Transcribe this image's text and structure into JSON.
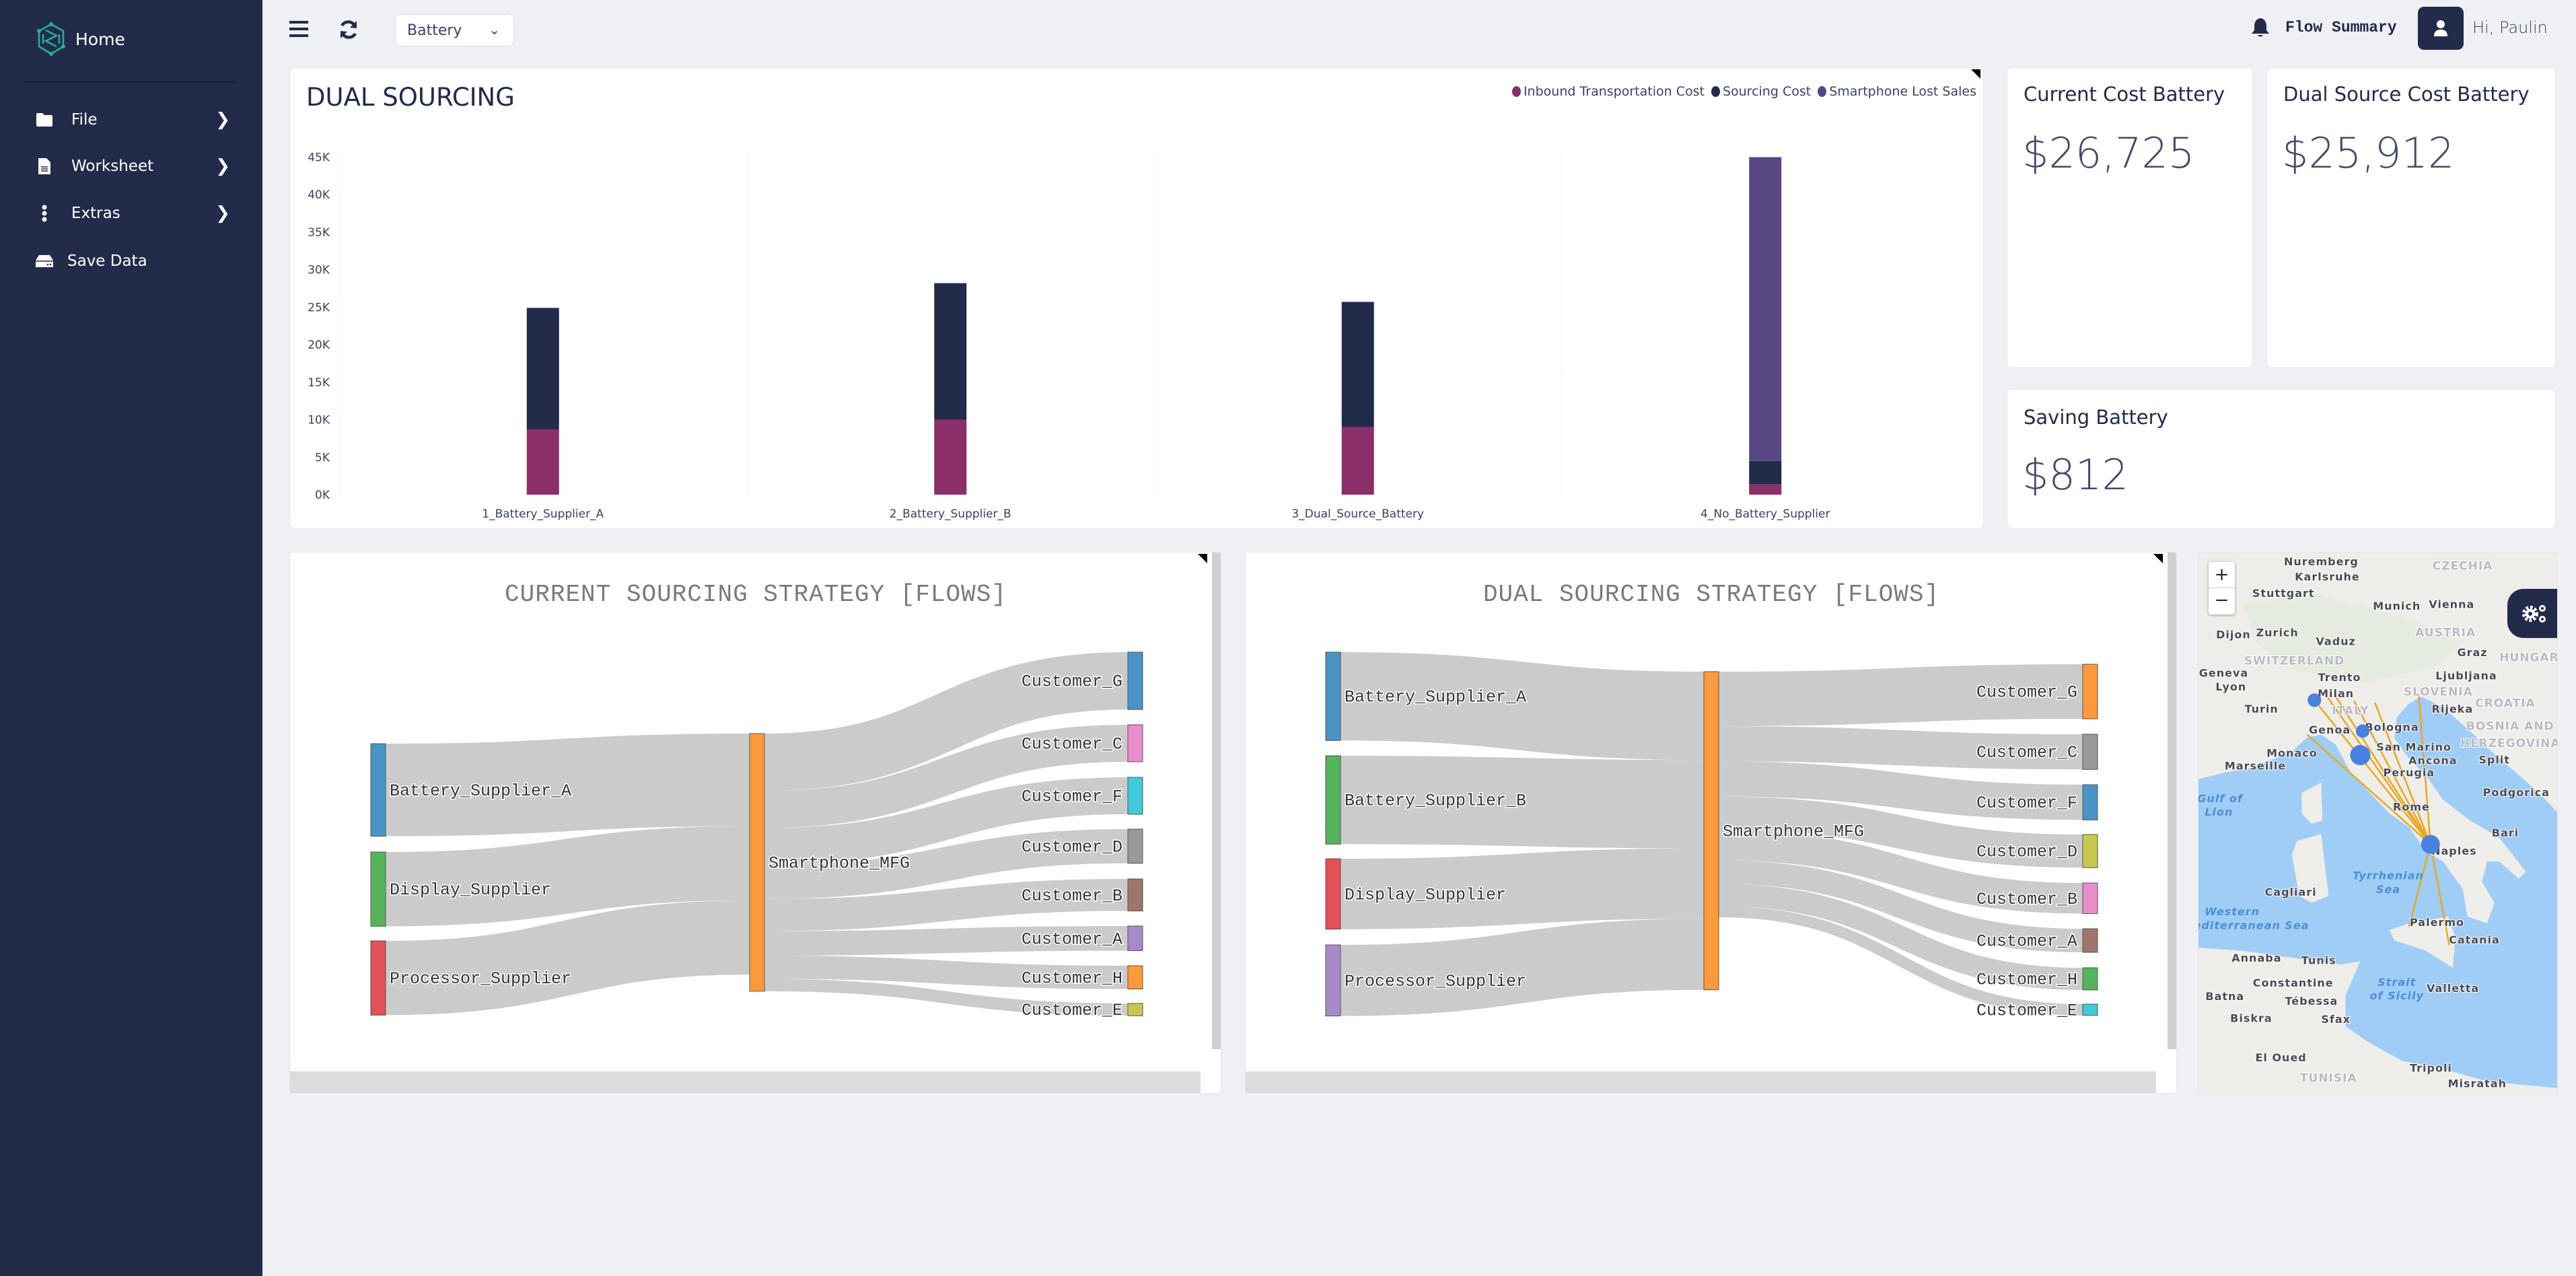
{
  "sidebar": {
    "home_label": "Home",
    "items": [
      {
        "label": "File",
        "icon": "folder-icon"
      },
      {
        "label": "Worksheet",
        "icon": "document-icon"
      },
      {
        "label": "Extras",
        "icon": "vertical-dots-icon"
      },
      {
        "label": "Save Data",
        "icon": "hard-drive-icon"
      }
    ]
  },
  "topbar": {
    "selector_value": "Battery",
    "flow_summary_label": "Flow Summary",
    "greeting": "Hi, Paulin"
  },
  "kpis": {
    "current_title": "Current Cost Battery",
    "current_value": "$26,725",
    "dual_title": "Dual Source Cost Battery",
    "dual_value": "$25,912",
    "saving_title": "Saving Battery",
    "saving_value": "$812"
  },
  "chart_data": {
    "type": "bar",
    "stacked": true,
    "title": "DUAL SOURCING",
    "categories": [
      "1_Battery_Supplier_A",
      "2_Battery_Supplier_B",
      "3_Dual_Source_Battery",
      "4_No_Battery_Supplier"
    ],
    "series": [
      {
        "name": "Inbound Transportation Cost",
        "color": "#8b2e69",
        "values": [
          8700,
          10000,
          9000,
          1400
        ]
      },
      {
        "name": "Sourcing Cost",
        "color": "#232b4b",
        "values": [
          16200,
          18200,
          16700,
          3100
        ]
      },
      {
        "name": "Smartphone Lost Sales",
        "color": "#574883",
        "values": [
          0,
          0,
          0,
          40500
        ]
      }
    ],
    "yticks": [
      "0K",
      "5K",
      "10K",
      "15K",
      "20K",
      "25K",
      "30K",
      "35K",
      "40K",
      "45K"
    ],
    "ylim": [
      0,
      45000
    ],
    "xlabel": "",
    "ylabel": "",
    "legend": "top-right",
    "grid": true
  },
  "sankeys": [
    {
      "title": "CURRENT SOURCING STRATEGY [FLOWS]",
      "nodes": [
        {
          "name": "Battery_Supplier_A",
          "color": "#4b93c5"
        },
        {
          "name": "Display_Supplier",
          "color": "#56b35a"
        },
        {
          "name": "Processor_Supplier",
          "color": "#e05255"
        },
        {
          "name": "Smartphone_MFG",
          "color": "#ff9a3c"
        },
        {
          "name": "Customer_G",
          "color": "#4b93c5"
        },
        {
          "name": "Customer_C",
          "color": "#e88fcb"
        },
        {
          "name": "Customer_F",
          "color": "#42c8d8"
        },
        {
          "name": "Customer_D",
          "color": "#999999"
        },
        {
          "name": "Customer_B",
          "color": "#a0766c"
        },
        {
          "name": "Customer_A",
          "color": "#a68ac9"
        },
        {
          "name": "Customer_H",
          "color": "#ff9a3c"
        },
        {
          "name": "Customer_E",
          "color": "#c8c850"
        }
      ],
      "links": [
        {
          "source": 0,
          "target": 3,
          "value": 263
        },
        {
          "source": 1,
          "target": 3,
          "value": 211
        },
        {
          "source": 2,
          "target": 3,
          "value": 211
        },
        {
          "source": 3,
          "target": 4,
          "value": 163
        },
        {
          "source": 3,
          "target": 5,
          "value": 105
        },
        {
          "source": 3,
          "target": 6,
          "value": 105
        },
        {
          "source": 3,
          "target": 7,
          "value": 97
        },
        {
          "source": 3,
          "target": 8,
          "value": 91
        },
        {
          "source": 3,
          "target": 9,
          "value": 70
        },
        {
          "source": 3,
          "target": 10,
          "value": 66
        },
        {
          "source": 3,
          "target": 11,
          "value": 35
        }
      ]
    },
    {
      "title": "DUAL SOURCING STRATEGY [FLOWS]",
      "nodes": [
        {
          "name": "Battery_Supplier_A",
          "color": "#4b93c5"
        },
        {
          "name": "Battery_Supplier_B",
          "color": "#56b35a"
        },
        {
          "name": "Display_Supplier",
          "color": "#e05255"
        },
        {
          "name": "Processor_Supplier",
          "color": "#a68ac9"
        },
        {
          "name": "Smartphone_MFG",
          "color": "#ff9a3c"
        },
        {
          "name": "Customer_G",
          "color": "#ff9a3c"
        },
        {
          "name": "Customer_C",
          "color": "#999999"
        },
        {
          "name": "Customer_F",
          "color": "#4b93c5"
        },
        {
          "name": "Customer_D",
          "color": "#c8c850"
        },
        {
          "name": "Customer_B",
          "color": "#e88fcb"
        },
        {
          "name": "Customer_A",
          "color": "#a0766c"
        },
        {
          "name": "Customer_H",
          "color": "#56b35a"
        },
        {
          "name": "Customer_E",
          "color": "#42c8d8"
        }
      ],
      "links": [
        {
          "source": 0,
          "target": 4,
          "value": 251
        },
        {
          "source": 1,
          "target": 4,
          "value": 251
        },
        {
          "source": 2,
          "target": 4,
          "value": 200
        },
        {
          "source": 3,
          "target": 4,
          "value": 202
        },
        {
          "source": 4,
          "target": 5,
          "value": 155
        },
        {
          "source": 4,
          "target": 6,
          "value": 100
        },
        {
          "source": 4,
          "target": 7,
          "value": 100
        },
        {
          "source": 4,
          "target": 8,
          "value": 94
        },
        {
          "source": 4,
          "target": 9,
          "value": 87
        },
        {
          "source": 4,
          "target": 10,
          "value": 67
        },
        {
          "source": 4,
          "target": 11,
          "value": 63
        },
        {
          "source": 4,
          "target": 12,
          "value": 32
        }
      ]
    }
  ],
  "map": {
    "zoom_in": "+",
    "zoom_out": "−",
    "route_color": "#e8a825",
    "site_color": "#4a80e0",
    "labels": [
      "Nuremberg",
      "Karlsruhe",
      "Stuttgart",
      "Munich",
      "Vienna",
      "CZECHIA",
      "Zurich",
      "Dijon",
      "AUSTRIA",
      "Vaduz",
      "Graz",
      "SWITZERLAND",
      "HUNGARY",
      "Geneva",
      "Lyon",
      "Trento",
      "Ljubljana",
      "Milan",
      "Turin",
      "ITALY",
      "SLOVENIA",
      "Rijeka",
      "CROATIA",
      "Genoa",
      "Bologna",
      "BOSNIA AND",
      "HERZEGOVINA",
      "San Marino",
      "Monaco",
      "Ancona",
      "Split",
      "Marseille",
      "Perugia",
      "Podgorica",
      "Rome",
      "Gulf of",
      "Lion",
      "Bari",
      "Naples",
      "Tyrrhenian",
      "Sea",
      "Cagliari",
      "Western",
      "Mediterranean Sea",
      "Palermo",
      "Catania",
      "Annaba",
      "Tunis",
      "Constantine",
      "Batna",
      "Tébessa",
      "Biskra",
      "Sfax",
      "Strait",
      "of Sicily",
      "Valletta",
      "El Oued",
      "Tripoli",
      "TUNISIA",
      "Misratah"
    ]
  }
}
